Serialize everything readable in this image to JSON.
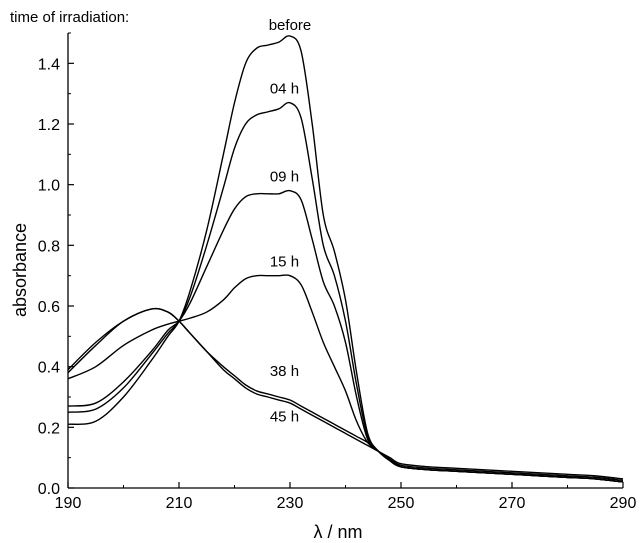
{
  "chart_data": {
    "type": "line",
    "title": "",
    "caption": "time of irradiation:",
    "xlabel": "λ / nm",
    "ylabel": "absorbance",
    "xlim": [
      190,
      290
    ],
    "ylim": [
      0,
      1.5
    ],
    "xticks": [
      190,
      210,
      230,
      250,
      270,
      290
    ],
    "yticks": [
      0.0,
      0.2,
      0.4,
      0.6,
      0.8,
      1.0,
      1.2,
      1.4
    ],
    "grid": false,
    "legend": "none",
    "series": [
      {
        "name": "before",
        "x": [
          190,
          195,
          200,
          205,
          208,
          210,
          212,
          215,
          218,
          220,
          222,
          224,
          226,
          228,
          230,
          232,
          234,
          236,
          238,
          240,
          242,
          244,
          246,
          248,
          250,
          255,
          260,
          265,
          270,
          275,
          280,
          285,
          290
        ],
        "y": [
          0.21,
          0.22,
          0.3,
          0.42,
          0.5,
          0.55,
          0.65,
          0.85,
          1.1,
          1.27,
          1.4,
          1.45,
          1.46,
          1.47,
          1.49,
          1.44,
          1.2,
          0.9,
          0.78,
          0.62,
          0.38,
          0.18,
          0.12,
          0.09,
          0.07,
          0.06,
          0.055,
          0.05,
          0.045,
          0.04,
          0.035,
          0.03,
          0.02
        ]
      },
      {
        "name": "04 h",
        "x": [
          190,
          195,
          200,
          205,
          208,
          210,
          212,
          215,
          218,
          220,
          222,
          224,
          226,
          228,
          230,
          232,
          234,
          236,
          238,
          240,
          242,
          244,
          246,
          248,
          250,
          255,
          260,
          265,
          270,
          275,
          280,
          285,
          290
        ],
        "y": [
          0.25,
          0.26,
          0.33,
          0.44,
          0.51,
          0.55,
          0.63,
          0.8,
          0.99,
          1.12,
          1.2,
          1.23,
          1.24,
          1.25,
          1.27,
          1.22,
          1.02,
          0.8,
          0.7,
          0.55,
          0.34,
          0.17,
          0.12,
          0.09,
          0.07,
          0.06,
          0.055,
          0.05,
          0.045,
          0.04,
          0.035,
          0.03,
          0.02
        ]
      },
      {
        "name": "09 h",
        "x": [
          190,
          195,
          200,
          205,
          208,
          210,
          212,
          215,
          218,
          220,
          222,
          224,
          226,
          228,
          230,
          232,
          234,
          236,
          238,
          240,
          242,
          244,
          246,
          248,
          250,
          255,
          260,
          265,
          270,
          275,
          280,
          285,
          290
        ],
        "y": [
          0.27,
          0.28,
          0.35,
          0.45,
          0.52,
          0.55,
          0.61,
          0.73,
          0.85,
          0.92,
          0.96,
          0.97,
          0.97,
          0.97,
          0.98,
          0.95,
          0.82,
          0.68,
          0.6,
          0.48,
          0.3,
          0.16,
          0.12,
          0.09,
          0.07,
          0.06,
          0.055,
          0.05,
          0.045,
          0.04,
          0.035,
          0.03,
          0.02
        ]
      },
      {
        "name": "15 h",
        "x": [
          190,
          195,
          200,
          205,
          208,
          210,
          212,
          215,
          218,
          220,
          222,
          224,
          226,
          228,
          230,
          232,
          234,
          236,
          238,
          240,
          242,
          244,
          246,
          248,
          250,
          255,
          260,
          265,
          270,
          275,
          280,
          285,
          290
        ],
        "y": [
          0.36,
          0.4,
          0.47,
          0.52,
          0.54,
          0.55,
          0.56,
          0.58,
          0.62,
          0.66,
          0.69,
          0.7,
          0.7,
          0.7,
          0.7,
          0.67,
          0.58,
          0.48,
          0.4,
          0.32,
          0.22,
          0.15,
          0.12,
          0.09,
          0.07,
          0.06,
          0.055,
          0.05,
          0.045,
          0.04,
          0.035,
          0.03,
          0.02
        ]
      },
      {
        "name": "38 h",
        "x": [
          190,
          195,
          200,
          205,
          208,
          210,
          212,
          215,
          218,
          220,
          222,
          224,
          226,
          228,
          230,
          232,
          234,
          236,
          238,
          240,
          242,
          244,
          246,
          248,
          250,
          255,
          260,
          265,
          270,
          275,
          280,
          285,
          290
        ],
        "y": [
          0.38,
          0.47,
          0.55,
          0.59,
          0.58,
          0.55,
          0.51,
          0.45,
          0.4,
          0.37,
          0.34,
          0.32,
          0.31,
          0.3,
          0.29,
          0.27,
          0.25,
          0.23,
          0.21,
          0.19,
          0.17,
          0.15,
          0.12,
          0.095,
          0.075,
          0.065,
          0.06,
          0.055,
          0.05,
          0.045,
          0.04,
          0.035,
          0.025
        ]
      },
      {
        "name": "45 h",
        "x": [
          190,
          195,
          200,
          205,
          208,
          210,
          212,
          215,
          218,
          220,
          222,
          224,
          226,
          228,
          230,
          232,
          234,
          236,
          238,
          240,
          242,
          244,
          246,
          248,
          250,
          255,
          260,
          265,
          270,
          275,
          280,
          285,
          290
        ],
        "y": [
          0.39,
          0.48,
          0.55,
          0.59,
          0.58,
          0.55,
          0.51,
          0.45,
          0.39,
          0.36,
          0.33,
          0.31,
          0.3,
          0.29,
          0.28,
          0.26,
          0.24,
          0.22,
          0.2,
          0.18,
          0.16,
          0.14,
          0.12,
          0.1,
          0.08,
          0.07,
          0.065,
          0.06,
          0.055,
          0.05,
          0.045,
          0.04,
          0.03
        ]
      }
    ],
    "annotations": [
      {
        "text": "before",
        "x": 230,
        "y": 1.51
      },
      {
        "text": "04 h",
        "x": 229,
        "y": 1.3
      },
      {
        "text": "09 h",
        "x": 229,
        "y": 1.01
      },
      {
        "text": "15 h",
        "x": 229,
        "y": 0.73
      },
      {
        "text": "38 h",
        "x": 229,
        "y": 0.37
      },
      {
        "text": "45 h",
        "x": 229,
        "y": 0.22
      }
    ]
  }
}
